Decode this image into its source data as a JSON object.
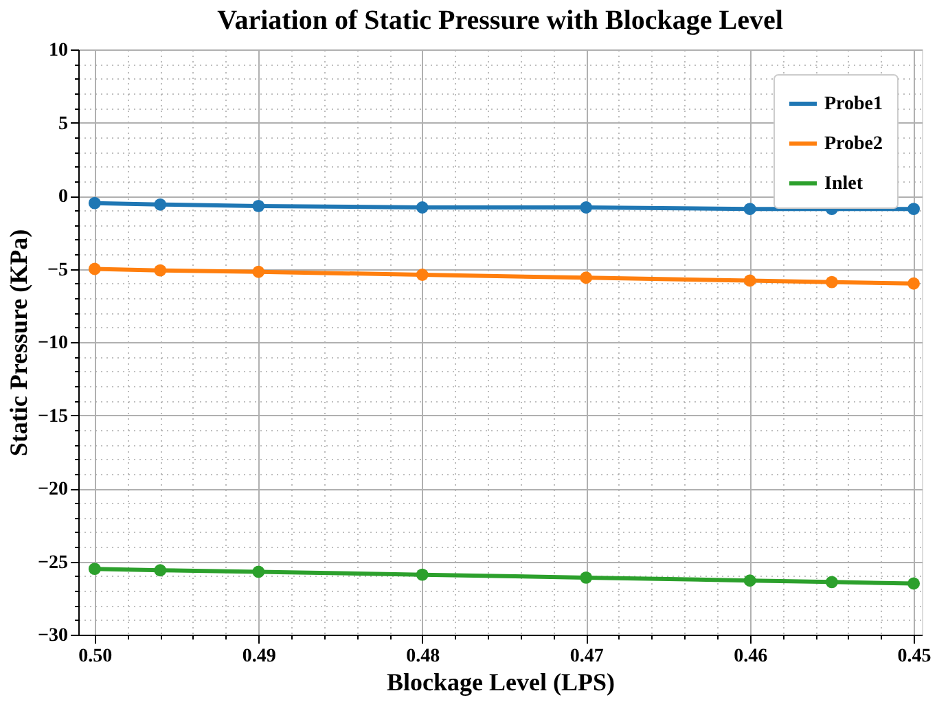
{
  "chart_data": {
    "type": "line",
    "title": "Variation of Static Pressure with Blockage Level",
    "xlabel": "Blockage Level (LPS)",
    "ylabel": "Static Pressure (KPa)",
    "x": [
      0.5,
      0.496,
      0.49,
      0.48,
      0.47,
      0.46,
      0.455,
      0.45
    ],
    "series": [
      {
        "name": "Probe1",
        "color": "#1f77b4",
        "values": [
          -0.5,
          -0.6,
          -0.7,
          -0.8,
          -0.8,
          -0.9,
          -0.9,
          -0.9
        ]
      },
      {
        "name": "Probe2",
        "color": "#ff7f0e",
        "values": [
          -5.0,
          -5.1,
          -5.2,
          -5.4,
          -5.6,
          -5.8,
          -5.9,
          -6.0
        ]
      },
      {
        "name": "Inlet",
        "color": "#2ca02c",
        "values": [
          -25.5,
          -25.6,
          -25.7,
          -25.9,
          -26.1,
          -26.3,
          -26.4,
          -26.5
        ]
      }
    ],
    "xlim": [
      0.501,
      0.4495
    ],
    "xticks": [
      {
        "value": 0.5,
        "label": "0.50"
      },
      {
        "value": 0.498,
        "label": null
      },
      {
        "value": 0.496,
        "label": null
      },
      {
        "value": 0.494,
        "label": null
      },
      {
        "value": 0.492,
        "label": null
      },
      0.49,
      {
        "value": 0.488,
        "label": null
      },
      {
        "value": 0.486,
        "label": null
      },
      {
        "value": 0.484,
        "label": null
      },
      {
        "value": 0.482,
        "label": null
      },
      0.48,
      {
        "value": 0.478,
        "label": null
      },
      {
        "value": 0.476,
        "label": null
      },
      {
        "value": 0.474,
        "label": null
      },
      {
        "value": 0.472,
        "label": null
      },
      0.47,
      {
        "value": 0.468,
        "label": null
      },
      {
        "value": 0.466,
        "label": null
      },
      {
        "value": 0.464,
        "label": null
      },
      {
        "value": 0.462,
        "label": null
      },
      0.46,
      {
        "value": 0.458,
        "label": null
      },
      {
        "value": 0.456,
        "label": null
      },
      {
        "value": 0.454,
        "label": null
      },
      {
        "value": 0.452,
        "label": null
      },
      0.45
    ],
    "ylim": [
      -30,
      10
    ],
    "yticks": [
      {
        "value": -30,
        "label": "−30"
      },
      {
        "value": -29,
        "label": null
      },
      {
        "value": -28,
        "label": null
      },
      {
        "value": -27,
        "label": null
      },
      {
        "value": -26,
        "label": null
      },
      {
        "value": -25,
        "label": "−25"
      },
      {
        "value": -24,
        "label": null
      },
      {
        "value": -23,
        "label": null
      },
      {
        "value": -22,
        "label": null
      },
      {
        "value": -21,
        "label": null
      },
      {
        "value": -20,
        "label": "−20"
      },
      {
        "value": -19,
        "label": null
      },
      {
        "value": -18,
        "label": null
      },
      {
        "value": -17,
        "label": null
      },
      {
        "value": -16,
        "label": null
      },
      {
        "value": -15,
        "label": "−15"
      },
      {
        "value": -14,
        "label": null
      },
      {
        "value": -13,
        "label": null
      },
      {
        "value": -12,
        "label": null
      },
      {
        "value": -11,
        "label": null
      },
      {
        "value": -10,
        "label": "−10"
      },
      {
        "value": -9,
        "label": null
      },
      {
        "value": -8,
        "label": null
      },
      {
        "value": -7,
        "label": null
      },
      {
        "value": -6,
        "label": null
      },
      {
        "value": -5,
        "label": "−5"
      },
      {
        "value": -4,
        "label": null
      },
      {
        "value": -3,
        "label": null
      },
      {
        "value": -2,
        "label": null
      },
      {
        "value": -1,
        "label": null
      },
      0,
      {
        "value": 1,
        "label": null
      },
      {
        "value": 2,
        "label": null
      },
      {
        "value": 3,
        "label": null
      },
      {
        "value": 4,
        "label": null
      },
      5,
      {
        "value": 6,
        "label": null
      },
      {
        "value": 7,
        "label": null
      },
      {
        "value": 8,
        "label": null
      },
      {
        "value": 9,
        "label": null
      },
      10
    ],
    "grid": true,
    "legend": "top right",
    "marker": "circle",
    "line_style": "solid"
  }
}
